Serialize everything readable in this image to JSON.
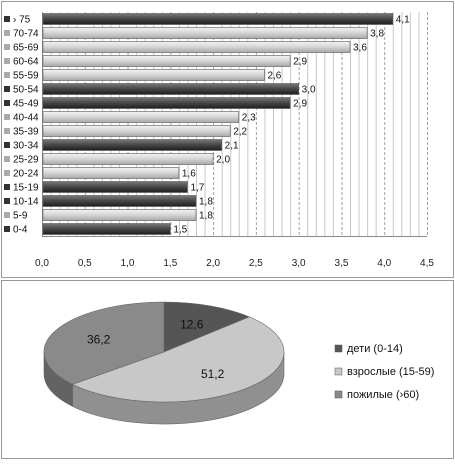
{
  "chart_data": [
    {
      "type": "bar",
      "orientation": "horizontal",
      "categories": [
        "0-4",
        "5-9",
        "10-14",
        "15-19",
        "20-24",
        "25-29",
        "30-34",
        "35-39",
        "40-44",
        "45-49",
        "50-54",
        "55-59",
        "60-64",
        "65-69",
        "70-74",
        "› 75"
      ],
      "values": [
        1.5,
        1.8,
        1.8,
        1.7,
        1.6,
        2.0,
        2.1,
        2.2,
        2.3,
        2.9,
        3.0,
        2.6,
        2.9,
        3.6,
        3.8,
        4.1
      ],
      "value_labels": [
        "1,5",
        "1,8",
        "1,8",
        "1,7",
        "1,6",
        "2,0",
        "2,1",
        "2,2",
        "2,3",
        "2,9",
        "3,0",
        "2,6",
        "2,9",
        "3,6",
        "3,8",
        "4,1"
      ],
      "xlim": [
        0,
        4.5
      ],
      "x_ticks": [
        "0,0",
        "0,5",
        "1,0",
        "1,5",
        "2,0",
        "2,5",
        "3,0",
        "3,5",
        "4,0",
        "4,5"
      ],
      "grid": true,
      "colors": {
        "dark": "#3a3a3a",
        "light": "#d6d6d6",
        "mid": "#8c8c8c"
      },
      "bar_shades": [
        "dark",
        "light",
        "dark",
        "dark",
        "light",
        "light",
        "dark",
        "light",
        "light",
        "dark",
        "dark",
        "light",
        "light",
        "light",
        "light",
        "dark"
      ]
    },
    {
      "type": "pie",
      "style": "3d",
      "slices": [
        {
          "label": "дети (0-14)",
          "value": 12.6,
          "value_label": "12,6",
          "color": "#555555"
        },
        {
          "label": "взрослые (15-59)",
          "value": 51.2,
          "value_label": "51,2",
          "color": "#c8c8c8"
        },
        {
          "label": "пожилые (›60)",
          "value": 36.2,
          "value_label": "36,2",
          "color": "#8a8a8a"
        }
      ],
      "legend_position": "right"
    }
  ]
}
